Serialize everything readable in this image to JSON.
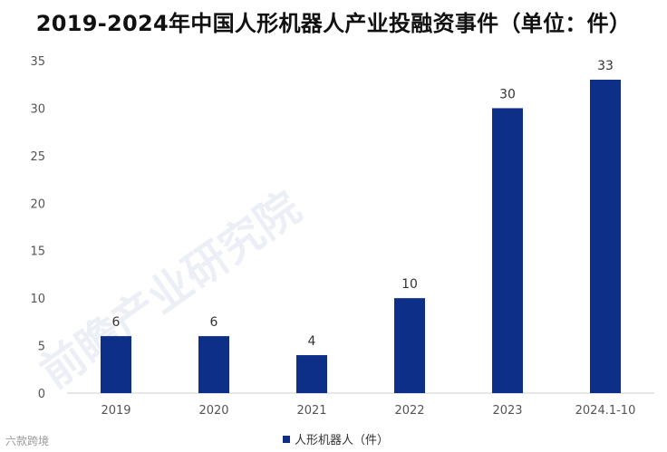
{
  "title": "2019-2024年中国人形机器人产业投融资事件（单位：件）",
  "watermark": "前瞻产业研究院",
  "logo_text": "六款跨境",
  "colors": {
    "bar": "#0d2f87",
    "axis": "#cccccc",
    "text": "#555555"
  },
  "chart_data": {
    "type": "bar",
    "categories": [
      "2019",
      "2020",
      "2021",
      "2022",
      "2023",
      "2024.1-10"
    ],
    "series": [
      {
        "name": "人形机器人（件）",
        "values": [
          6,
          6,
          4,
          10,
          30,
          33
        ]
      }
    ],
    "ylim": [
      0,
      35
    ],
    "yticks": [
      0,
      5,
      10,
      15,
      20,
      25,
      30,
      35
    ],
    "data_labels": true,
    "grid": false,
    "legend": "bottom-center"
  }
}
